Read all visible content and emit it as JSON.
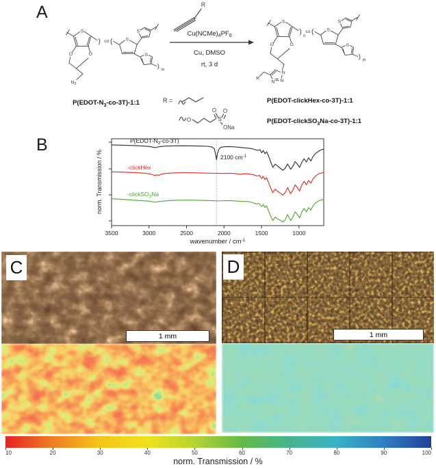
{
  "panelA": {
    "label": "A",
    "reactant_name": {
      "pre": "P(EDOT-N",
      "sub": "3",
      "post": "-co-3T)-1:1"
    },
    "product_names": [
      {
        "pre": "P(EDOT-clickHex",
        "sub": "",
        "post": "-co-3T)-1:1"
      },
      {
        "pre": "P(EDOT-clickSO",
        "sub": "3",
        "post": "Na-co-3T)-1:1"
      }
    ],
    "conditions": {
      "reagent": {
        "pre": "Cu(NCMe)",
        "sub1": "4",
        "mid": "PF",
        "sub2": "6"
      },
      "line2": "Cu, DMSO",
      "line3": "rt, 3 d"
    },
    "r_equals": "R =",
    "atoms": {
      "S": "S",
      "O": "O",
      "N": "N",
      "sub3": "3",
      "co": "co",
      "n": "n",
      "m": "m",
      "R": "R",
      "ONa": "ONa",
      "bracket_open": "(",
      "bracket_close": ")"
    }
  },
  "panelB": {
    "label": "B"
  },
  "chart_data": {
    "type": "line",
    "xlabel_pre": "wavenumber / cm",
    "xlabel_sup": "-1",
    "ylabel": "norm. Transmission / %",
    "x_axis_reversed": true,
    "xlim": [
      3500,
      670
    ],
    "x_ticks": [
      3500,
      3000,
      2500,
      2000,
      1500,
      1000
    ],
    "grid": false,
    "annotation": {
      "x": 2100,
      "label_pre": "2100 cm",
      "label_sup": "-1"
    },
    "series": [
      {
        "name_pre": "P(EDOT-N",
        "name_sub": "3",
        "name_post": "-co-3T)",
        "color": "#2b2b2b",
        "points": [
          [
            3500,
            93
          ],
          [
            3350,
            92.6
          ],
          [
            3200,
            92.2
          ],
          [
            3060,
            91.6
          ],
          [
            2990,
            91
          ],
          [
            2940,
            90.2
          ],
          [
            2915,
            89.8
          ],
          [
            2880,
            90.6
          ],
          [
            2820,
            91.4
          ],
          [
            2700,
            91.8
          ],
          [
            2550,
            92
          ],
          [
            2400,
            91.8
          ],
          [
            2300,
            91.6
          ],
          [
            2220,
            91.3
          ],
          [
            2160,
            90.6
          ],
          [
            2130,
            88.5
          ],
          [
            2112,
            82
          ],
          [
            2100,
            76
          ],
          [
            2088,
            83
          ],
          [
            2065,
            88.5
          ],
          [
            2040,
            90.2
          ],
          [
            2000,
            90.8
          ],
          [
            1940,
            91
          ],
          [
            1880,
            90.8
          ],
          [
            1820,
            90.4
          ],
          [
            1770,
            89.9
          ],
          [
            1720,
            89.5
          ],
          [
            1670,
            89.1
          ],
          [
            1620,
            88.5
          ],
          [
            1580,
            87.3
          ],
          [
            1545,
            86.6
          ],
          [
            1520,
            87.4
          ],
          [
            1497,
            83.8
          ],
          [
            1478,
            86.6
          ],
          [
            1452,
            82.8
          ],
          [
            1432,
            85.2
          ],
          [
            1405,
            80
          ],
          [
            1378,
            73.5
          ],
          [
            1348,
            67
          ],
          [
            1318,
            70.8
          ],
          [
            1288,
            68.8
          ],
          [
            1255,
            66.4
          ],
          [
            1215,
            63.8
          ],
          [
            1185,
            66
          ],
          [
            1152,
            71
          ],
          [
            1112,
            65
          ],
          [
            1082,
            68.2
          ],
          [
            1052,
            73.8
          ],
          [
            1022,
            70.8
          ],
          [
            992,
            67
          ],
          [
            962,
            73
          ],
          [
            932,
            77
          ],
          [
            902,
            73.2
          ],
          [
            872,
            78
          ],
          [
            842,
            74.4
          ],
          [
            812,
            79.8
          ],
          [
            782,
            82.8
          ],
          [
            752,
            84.8
          ],
          [
            722,
            86.6
          ],
          [
            692,
            87.6
          ],
          [
            670,
            88
          ]
        ]
      },
      {
        "name": "-clickHex",
        "color": "#e8251f",
        "points": [
          [
            3500,
            62
          ],
          [
            3340,
            61.6
          ],
          [
            3190,
            61.1
          ],
          [
            3060,
            60.4
          ],
          [
            2995,
            59.6
          ],
          [
            2950,
            58.6
          ],
          [
            2925,
            57.6
          ],
          [
            2900,
            58.4
          ],
          [
            2868,
            57.9
          ],
          [
            2838,
            59.2
          ],
          [
            2760,
            60.3
          ],
          [
            2650,
            60.8
          ],
          [
            2520,
            61
          ],
          [
            2380,
            60.8
          ],
          [
            2240,
            60.5
          ],
          [
            2100,
            60.2
          ],
          [
            2010,
            60.1
          ],
          [
            1940,
            60.3
          ],
          [
            1870,
            60.1
          ],
          [
            1810,
            59.4
          ],
          [
            1778,
            58.9
          ],
          [
            1748,
            59.7
          ],
          [
            1700,
            59.8
          ],
          [
            1650,
            59.2
          ],
          [
            1600,
            58.4
          ],
          [
            1560,
            57.1
          ],
          [
            1528,
            57.9
          ],
          [
            1498,
            54.2
          ],
          [
            1478,
            56.7
          ],
          [
            1452,
            53.1
          ],
          [
            1432,
            55.2
          ],
          [
            1405,
            49.4
          ],
          [
            1378,
            43.5
          ],
          [
            1348,
            37.8
          ],
          [
            1318,
            41.9
          ],
          [
            1288,
            39.8
          ],
          [
            1255,
            37.6
          ],
          [
            1215,
            35.2
          ],
          [
            1185,
            37.8
          ],
          [
            1152,
            43.8
          ],
          [
            1112,
            36.8
          ],
          [
            1082,
            40.8
          ],
          [
            1052,
            47
          ],
          [
            1022,
            43.8
          ],
          [
            992,
            39.8
          ],
          [
            962,
            46.8
          ],
          [
            932,
            51
          ],
          [
            902,
            47
          ],
          [
            872,
            52
          ],
          [
            842,
            48.8
          ],
          [
            812,
            54
          ],
          [
            782,
            56.8
          ],
          [
            752,
            58.8
          ],
          [
            722,
            60.2
          ],
          [
            692,
            60.8
          ],
          [
            670,
            61
          ]
        ]
      },
      {
        "name_pre": "-clickSO",
        "name_sub": "3",
        "name_post": "Na",
        "color": "#4fa52f",
        "points": [
          [
            3500,
            31
          ],
          [
            3360,
            30.2
          ],
          [
            3220,
            29.4
          ],
          [
            3090,
            28.7
          ],
          [
            3010,
            28.2
          ],
          [
            2950,
            27.4
          ],
          [
            2920,
            27
          ],
          [
            2880,
            27.6
          ],
          [
            2820,
            28.2
          ],
          [
            2720,
            28.9
          ],
          [
            2600,
            29.3
          ],
          [
            2480,
            29.4
          ],
          [
            2350,
            29.2
          ],
          [
            2220,
            28.9
          ],
          [
            2100,
            28.5
          ],
          [
            2020,
            28.6
          ],
          [
            1950,
            28.8
          ],
          [
            1880,
            28.6
          ],
          [
            1820,
            28.2
          ],
          [
            1770,
            27.8
          ],
          [
            1730,
            28
          ],
          [
            1690,
            27.7
          ],
          [
            1650,
            27.2
          ],
          [
            1610,
            26.3
          ],
          [
            1570,
            24.9
          ],
          [
            1535,
            25.7
          ],
          [
            1500,
            21.9
          ],
          [
            1478,
            24.3
          ],
          [
            1452,
            20.7
          ],
          [
            1432,
            22.8
          ],
          [
            1405,
            16.9
          ],
          [
            1378,
            11
          ],
          [
            1348,
            5.8
          ],
          [
            1318,
            9.9
          ],
          [
            1288,
            7.9
          ],
          [
            1255,
            6.4
          ],
          [
            1215,
            4.2
          ],
          [
            1185,
            6.8
          ],
          [
            1152,
            12.8
          ],
          [
            1112,
            5.8
          ],
          [
            1082,
            9.8
          ],
          [
            1052,
            15.8
          ],
          [
            1022,
            12.8
          ],
          [
            992,
            8.8
          ],
          [
            962,
            15.8
          ],
          [
            932,
            19.8
          ],
          [
            902,
            15.8
          ],
          [
            872,
            20.8
          ],
          [
            842,
            17.8
          ],
          [
            812,
            22.8
          ],
          [
            782,
            25.8
          ],
          [
            752,
            27.8
          ],
          [
            722,
            29.2
          ],
          [
            692,
            29.8
          ],
          [
            670,
            30
          ]
        ]
      }
    ]
  },
  "panelC": {
    "label": "C",
    "scale_bar": "1 mm"
  },
  "panelD": {
    "label": "D",
    "scale_bar": "1 mm"
  },
  "colorbar": {
    "label": "norm. Transmission / %",
    "ticks": [
      10,
      20,
      30,
      40,
      50,
      60,
      70,
      80,
      90,
      100
    ],
    "gradient": [
      "#e32322",
      "#f07d21",
      "#f6c51b",
      "#f0e11e",
      "#b5d332",
      "#62ba46",
      "#45b48c",
      "#38b2c8",
      "#2f7fc2",
      "#20409a"
    ]
  }
}
